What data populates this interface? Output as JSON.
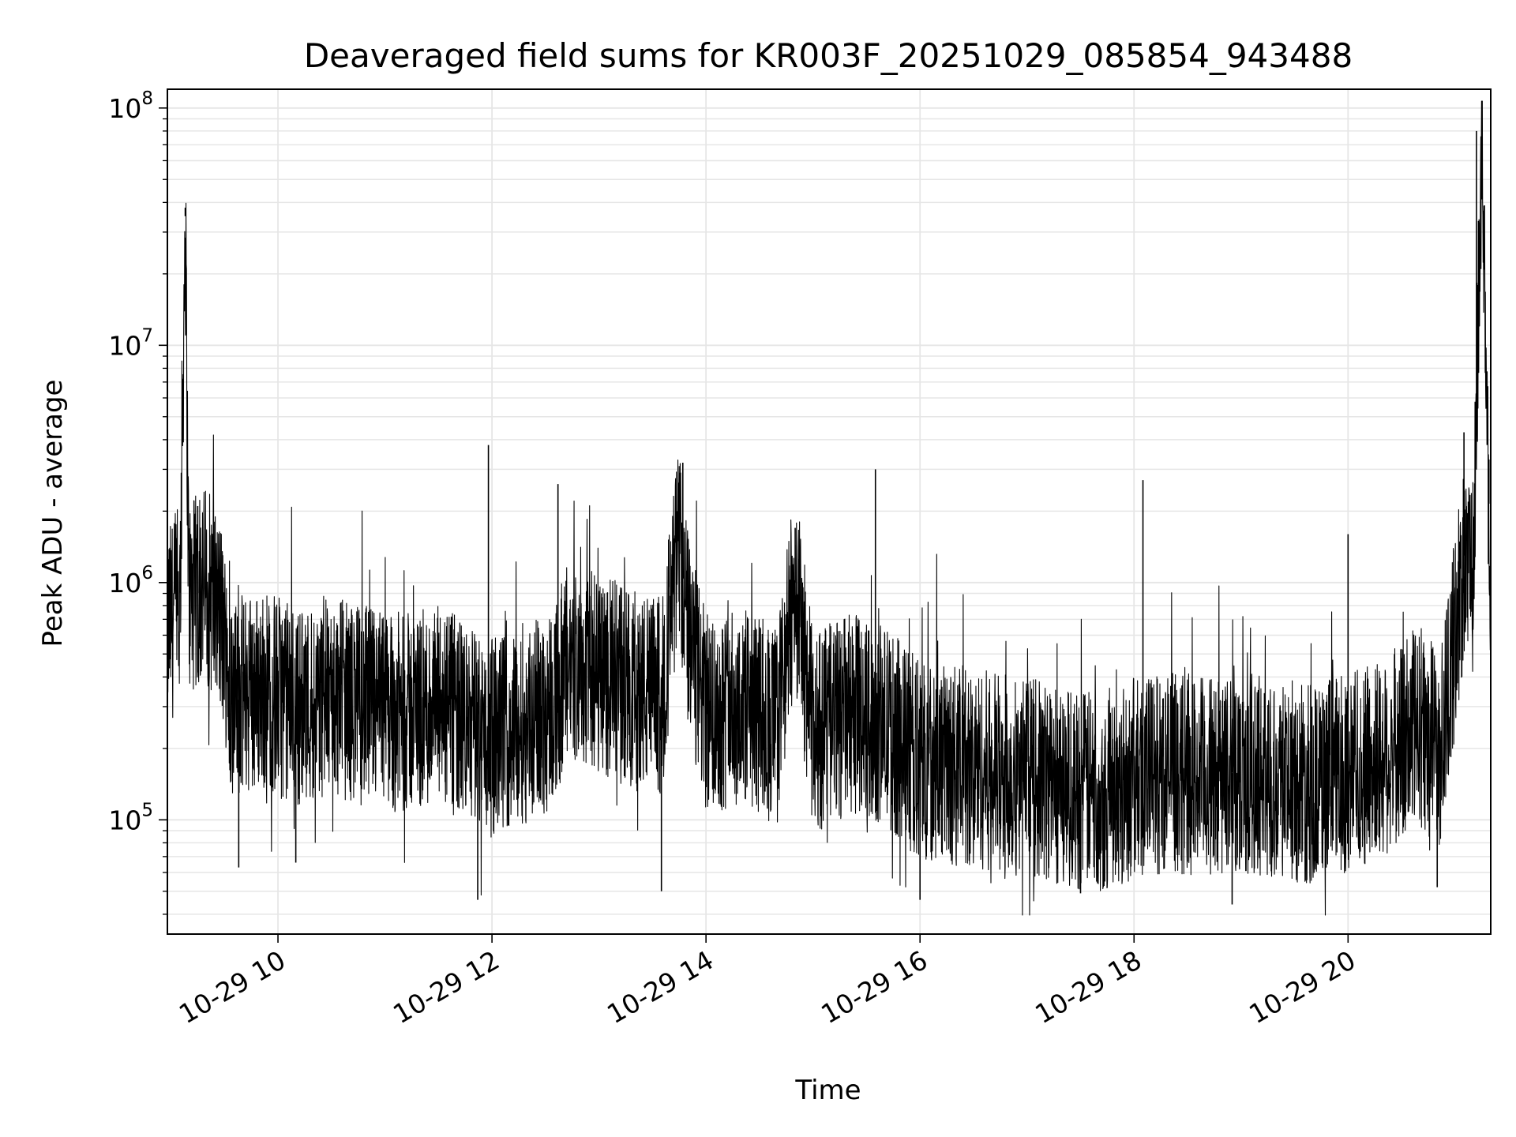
{
  "chart_data": {
    "type": "line",
    "title": "Deaveraged field sums for KR003F_20251029_085854_943488",
    "xlabel": "Time",
    "ylabel": "Peak ADU - average",
    "yscale": "log",
    "ylim": [
      33000,
      120000000
    ],
    "xlim": [
      "2025-10-29 08:58",
      "2025-10-29 21:20"
    ],
    "grid": true,
    "line_color": "#000000",
    "grid_color": "#e6e6e6",
    "x_ticks": [
      {
        "value": "2025-10-29 10:00",
        "label": "10-29 10"
      },
      {
        "value": "2025-10-29 12:00",
        "label": "10-29 12"
      },
      {
        "value": "2025-10-29 14:00",
        "label": "10-29 14"
      },
      {
        "value": "2025-10-29 16:00",
        "label": "10-29 16"
      },
      {
        "value": "2025-10-29 18:00",
        "label": "10-29 18"
      },
      {
        "value": "2025-10-29 20:00",
        "label": "10-29 20"
      }
    ],
    "y_ticks": [
      {
        "value": 100000,
        "base": "10",
        "exp": "5"
      },
      {
        "value": 1000000,
        "base": "10",
        "exp": "6"
      },
      {
        "value": 10000000,
        "base": "10",
        "exp": "7"
      },
      {
        "value": 100000000,
        "base": "10",
        "exp": "8"
      }
    ],
    "series": [
      {
        "x": [
          "2025-10-29 08:58",
          "2025-10-29 09:05",
          "2025-10-29 09:08",
          "2025-10-29 09:10",
          "2025-10-29 09:12",
          "2025-10-29 09:20",
          "2025-10-29 09:28",
          "2025-10-29 09:35",
          "2025-10-29 09:42",
          "2025-10-29 09:55",
          "2025-10-29 10:10",
          "2025-10-29 10:30",
          "2025-10-29 10:50",
          "2025-10-29 11:10",
          "2025-10-29 11:30",
          "2025-10-29 11:50",
          "2025-10-29 12:00",
          "2025-10-29 12:15",
          "2025-10-29 12:30",
          "2025-10-29 12:45",
          "2025-10-29 13:00",
          "2025-10-29 13:20",
          "2025-10-29 13:35",
          "2025-10-29 13:45",
          "2025-10-29 13:50",
          "2025-10-29 14:00",
          "2025-10-29 14:20",
          "2025-10-29 14:40",
          "2025-10-29 14:50",
          "2025-10-29 15:00",
          "2025-10-29 15:20",
          "2025-10-29 15:40",
          "2025-10-29 16:00",
          "2025-10-29 16:20",
          "2025-10-29 16:40",
          "2025-10-29 17:00",
          "2025-10-29 17:20",
          "2025-10-29 17:40",
          "2025-10-29 18:00",
          "2025-10-29 18:20",
          "2025-10-29 18:40",
          "2025-10-29 19:00",
          "2025-10-29 19:20",
          "2025-10-29 19:40",
          "2025-10-29 20:00",
          "2025-10-29 20:20",
          "2025-10-29 20:40",
          "2025-10-29 20:52",
          "2025-10-29 21:00",
          "2025-10-29 21:05",
          "2025-10-29 21:10",
          "2025-10-29 21:15",
          "2025-10-29 21:20"
        ],
        "y": [
          650000,
          800000,
          35000000,
          900000,
          850000,
          1000000,
          700000,
          300000,
          350000,
          350000,
          300000,
          330000,
          300000,
          280000,
          300000,
          250000,
          220000,
          250000,
          280000,
          450000,
          420000,
          350000,
          330000,
          1500000,
          600000,
          280000,
          300000,
          250000,
          1000000,
          230000,
          280000,
          250000,
          180000,
          170000,
          160000,
          150000,
          140000,
          130000,
          150000,
          160000,
          150000,
          160000,
          150000,
          140000,
          160000,
          180000,
          250000,
          200000,
          600000,
          1300000,
          1000000,
          70000000,
          900000
        ]
      }
    ],
    "spikes": [
      {
        "x": "2025-10-29 09:08",
        "y": 38000000
      },
      {
        "x": "2025-10-29 09:15",
        "y": 2100000
      },
      {
        "x": "2025-10-29 11:58",
        "y": 3800000
      },
      {
        "x": "2025-10-29 12:37",
        "y": 2600000
      },
      {
        "x": "2025-10-29 13:47",
        "y": 3200000
      },
      {
        "x": "2025-10-29 14:50",
        "y": 1700000
      },
      {
        "x": "2025-10-29 15:35",
        "y": 3000000
      },
      {
        "x": "2025-10-29 18:05",
        "y": 2700000
      },
      {
        "x": "2025-10-29 20:00",
        "y": 1600000
      },
      {
        "x": "2025-10-29 21:05",
        "y": 4300000
      },
      {
        "x": "2025-10-29 21:12",
        "y": 80000000
      },
      {
        "x": "2025-10-29 21:19",
        "y": 3300000
      }
    ],
    "dips": [
      {
        "x": "2025-10-29 09:38",
        "y": 63000
      },
      {
        "x": "2025-10-29 10:10",
        "y": 66000
      },
      {
        "x": "2025-10-29 11:52",
        "y": 46000
      },
      {
        "x": "2025-10-29 13:35",
        "y": 50000
      },
      {
        "x": "2025-10-29 16:00",
        "y": 46000
      },
      {
        "x": "2025-10-29 17:30",
        "y": 49000
      },
      {
        "x": "2025-10-29 18:55",
        "y": 44000
      },
      {
        "x": "2025-10-29 20:50",
        "y": 52000
      }
    ]
  }
}
